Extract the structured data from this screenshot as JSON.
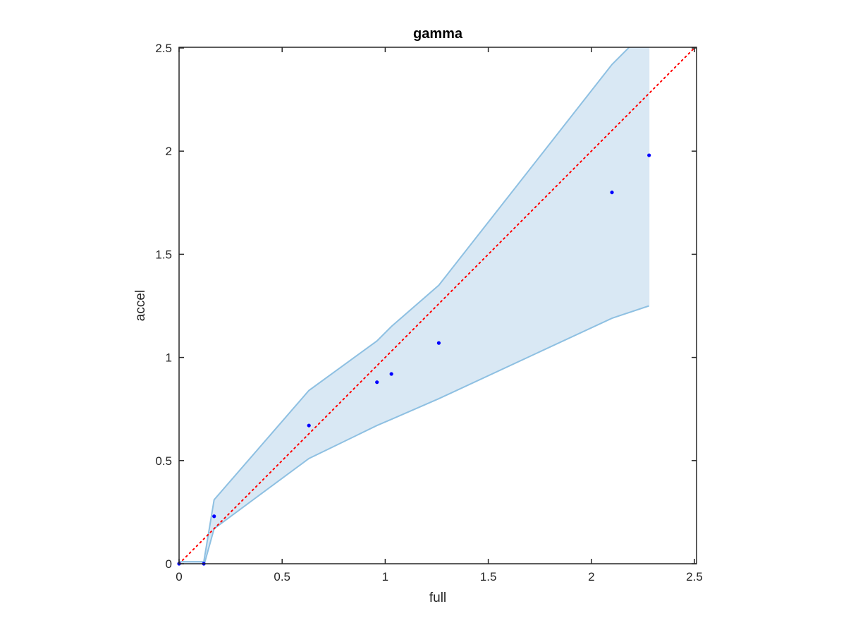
{
  "chart_data": {
    "type": "scatter",
    "title": "gamma",
    "xlabel": "full",
    "ylabel": "accel",
    "xlim": [
      0,
      2.5
    ],
    "ylim": [
      0,
      2.5
    ],
    "xticks": [
      0,
      0.5,
      1,
      1.5,
      2,
      2.5
    ],
    "yticks": [
      0,
      0.5,
      1,
      1.5,
      2,
      2.5
    ],
    "xtick_labels": [
      "0",
      "0.5",
      "1",
      "1.5",
      "2",
      "2.5"
    ],
    "ytick_labels": [
      "0",
      "0.5",
      "1",
      "1.5",
      "2",
      "2.5"
    ],
    "grid": false,
    "box": true,
    "series": [
      {
        "kind": "points",
        "color": "#0000ff",
        "x": [
          0,
          0.12,
          0.17,
          0.63,
          0.96,
          1.03,
          1.26,
          2.1,
          2.28
        ],
        "y": [
          0,
          0,
          0.23,
          0.67,
          0.88,
          0.92,
          1.07,
          1.8,
          1.98
        ]
      },
      {
        "kind": "band",
        "fill": "#d9e8f4",
        "edge": "#8ec0e2",
        "x": [
          0,
          0.12,
          0.17,
          0.63,
          0.96,
          1.03,
          1.26,
          2.1,
          2.28
        ],
        "upper": [
          0.01,
          0.01,
          0.31,
          0.84,
          1.08,
          1.15,
          1.35,
          2.42,
          2.6
        ],
        "lower": [
          -0.01,
          -0.01,
          0.17,
          0.51,
          0.67,
          0.7,
          0.8,
          1.19,
          1.25
        ]
      },
      {
        "kind": "reference-line",
        "color": "#ff0000",
        "style": "dotted",
        "x": [
          0,
          2.5
        ],
        "y": [
          0,
          2.5
        ]
      }
    ]
  }
}
